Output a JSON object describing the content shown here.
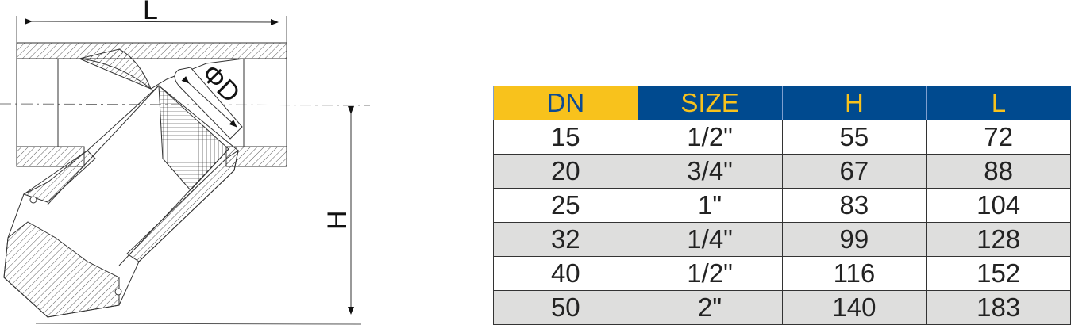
{
  "drawing": {
    "labels": {
      "length": "L",
      "diameter": "ΦD",
      "height": "H"
    }
  },
  "table": {
    "header_colors": {
      "dn_bg": "#f8c21c",
      "dn_text": "#0d4b93",
      "other_bg": "#004a8f",
      "other_text": "#f8c21c"
    },
    "row_alt_color": "#dededd",
    "columns": [
      "DN",
      "SIZE",
      "H",
      "L"
    ],
    "rows": [
      [
        "15",
        "1/2\"",
        "55",
        "72"
      ],
      [
        "20",
        "3/4\"",
        "67",
        "88"
      ],
      [
        "25",
        "1\"",
        "83",
        "104"
      ],
      [
        "32",
        "1/4\"",
        "99",
        "128"
      ],
      [
        "40",
        "1/2\"",
        "116",
        "152"
      ],
      [
        "50",
        "2\"",
        "140",
        "183"
      ]
    ]
  }
}
